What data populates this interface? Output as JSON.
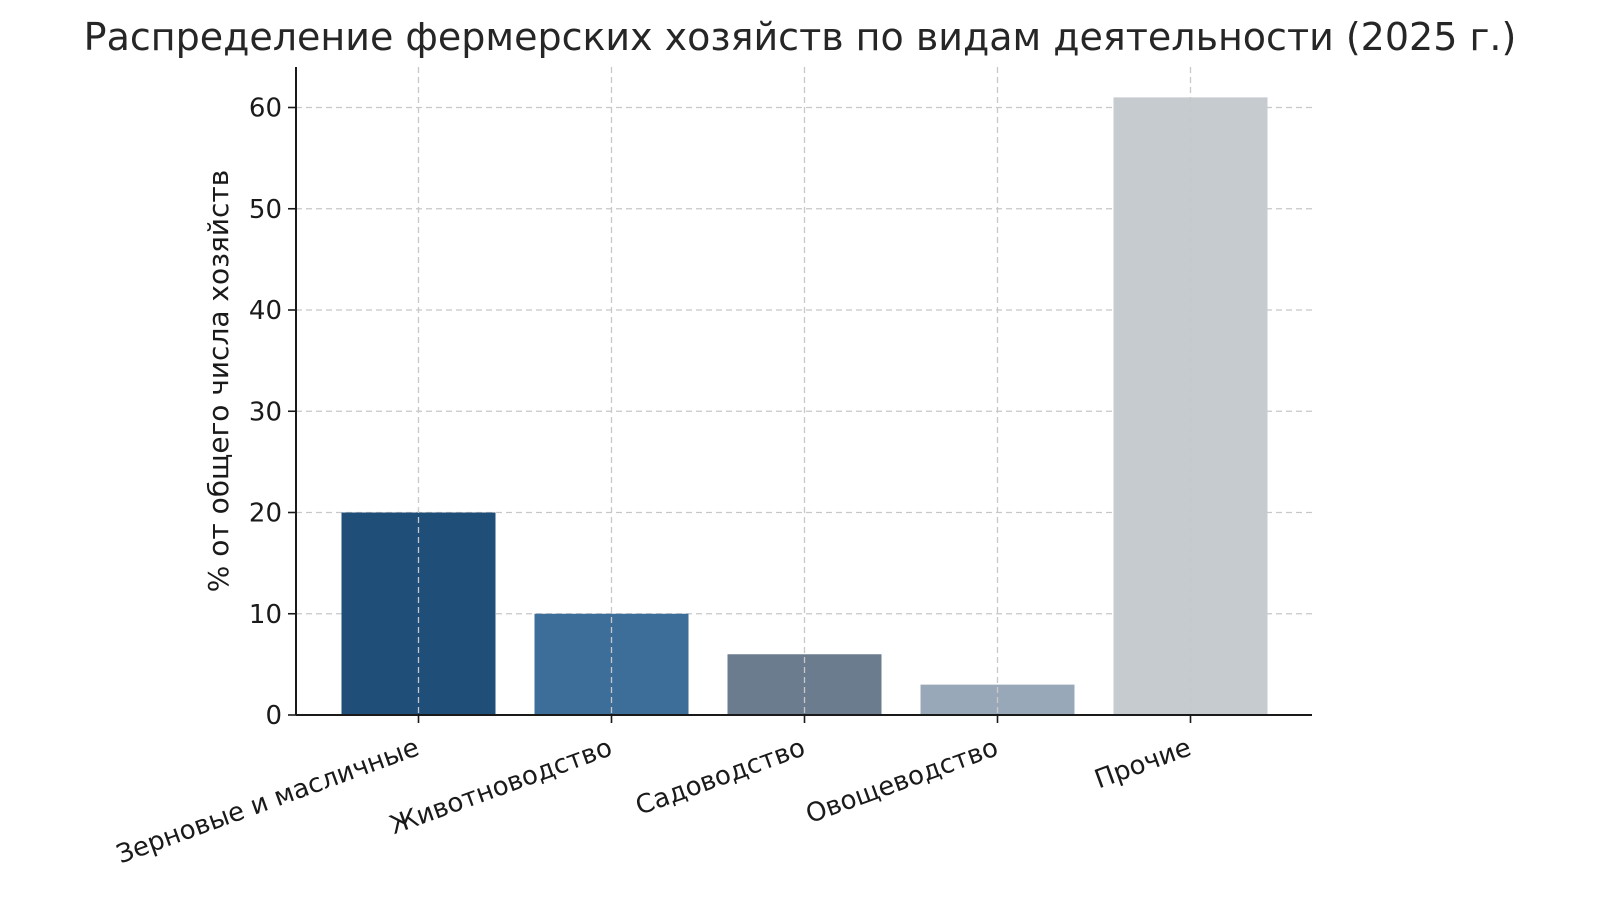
{
  "chart_data": {
    "type": "bar",
    "title": "Распределение фермерских хозяйств по видам деятельности (2025 г.)",
    "xlabel": "",
    "ylabel": "% от общего числа хозяйств",
    "categories": [
      "Зерновые и масличные",
      "Животноводство",
      "Садоводство",
      "Овощеводство",
      "Прочие"
    ],
    "values": [
      20,
      10,
      6,
      3,
      61
    ],
    "colors": [
      "#1f4e79",
      "#3d6e99",
      "#6b7c8f",
      "#99a8b8",
      "#c6cbd0"
    ],
    "ylim": [
      0,
      64
    ],
    "yticks": [
      0,
      10,
      20,
      30,
      40,
      50,
      60
    ],
    "grid": true,
    "legend": "none"
  }
}
